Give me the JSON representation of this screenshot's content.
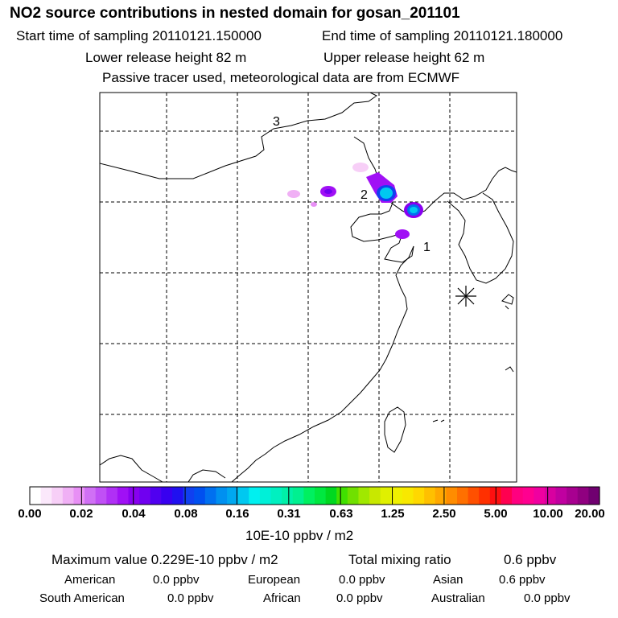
{
  "header": {
    "title": "NO2 source contributions in nested domain for gosan_201101",
    "start_time": "Start time of sampling 20110121.150000",
    "end_time": "End time of sampling 20110121.180000",
    "lower_release": "Lower release height   82 m",
    "upper_release": "Upper release height   62 m",
    "tracer_note": "Passive tracer used, meteorological data are from ECMWF"
  },
  "map": {
    "labels": [
      {
        "id": "3",
        "text": "3"
      },
      {
        "id": "2",
        "text": "2"
      },
      {
        "id": "1",
        "text": "1"
      }
    ],
    "receptor_marker": "asterisk-icon"
  },
  "legend": {
    "ticks": [
      "0.00",
      "0.02",
      "0.04",
      "0.08",
      "0.16",
      "0.31",
      "0.63",
      "1.25",
      "2.50",
      "5.00",
      "10.00",
      "20.00"
    ],
    "unit": "10E-10 ppbv / m2",
    "colors": [
      "#ffffff",
      "#fbe8fb",
      "#f7cff7",
      "#f0b0f5",
      "#e890f5",
      "#d070f5",
      "#c050f5",
      "#b030f5",
      "#a010f5",
      "#8800f0",
      "#7000f0",
      "#5000f0",
      "#3800f0",
      "#2010f0",
      "#1040f0",
      "#0050f0",
      "#0070f0",
      "#0090f0",
      "#00a8f0",
      "#00c8f0",
      "#00f0f0",
      "#00f0d8",
      "#00f0c0",
      "#00f0a8",
      "#00f090",
      "#00f060",
      "#00e840",
      "#00d820",
      "#40e000",
      "#70e000",
      "#a0e800",
      "#c8e800",
      "#e0f000",
      "#f0f000",
      "#f8e800",
      "#ffd800",
      "#ffc000",
      "#ffa800",
      "#ff8c00",
      "#ff7000",
      "#ff5000",
      "#ff3000",
      "#ff1010",
      "#ff0050",
      "#ff0080",
      "#ff0090",
      "#f000a0",
      "#d800a0",
      "#c000a0",
      "#a80090",
      "#900080",
      "#700070"
    ]
  },
  "summary": {
    "max_value": "Maximum value  0.229E-10 ppbv / m2",
    "total_mixing_label": "Total mixing ratio",
    "total_mixing_value": "0.6 ppbv",
    "american_label": "American",
    "american_value": "0.0 ppbv",
    "european_label": "European",
    "european_value": "0.0 ppbv",
    "asian_label": "Asian",
    "asian_value": "0.6 ppbv",
    "south_american_label": "South American",
    "south_american_value": "0.0 ppbv",
    "african_label": "African",
    "african_value": "0.0 ppbv",
    "australian_label": "Australian",
    "australian_value": "0.0 ppbv"
  }
}
